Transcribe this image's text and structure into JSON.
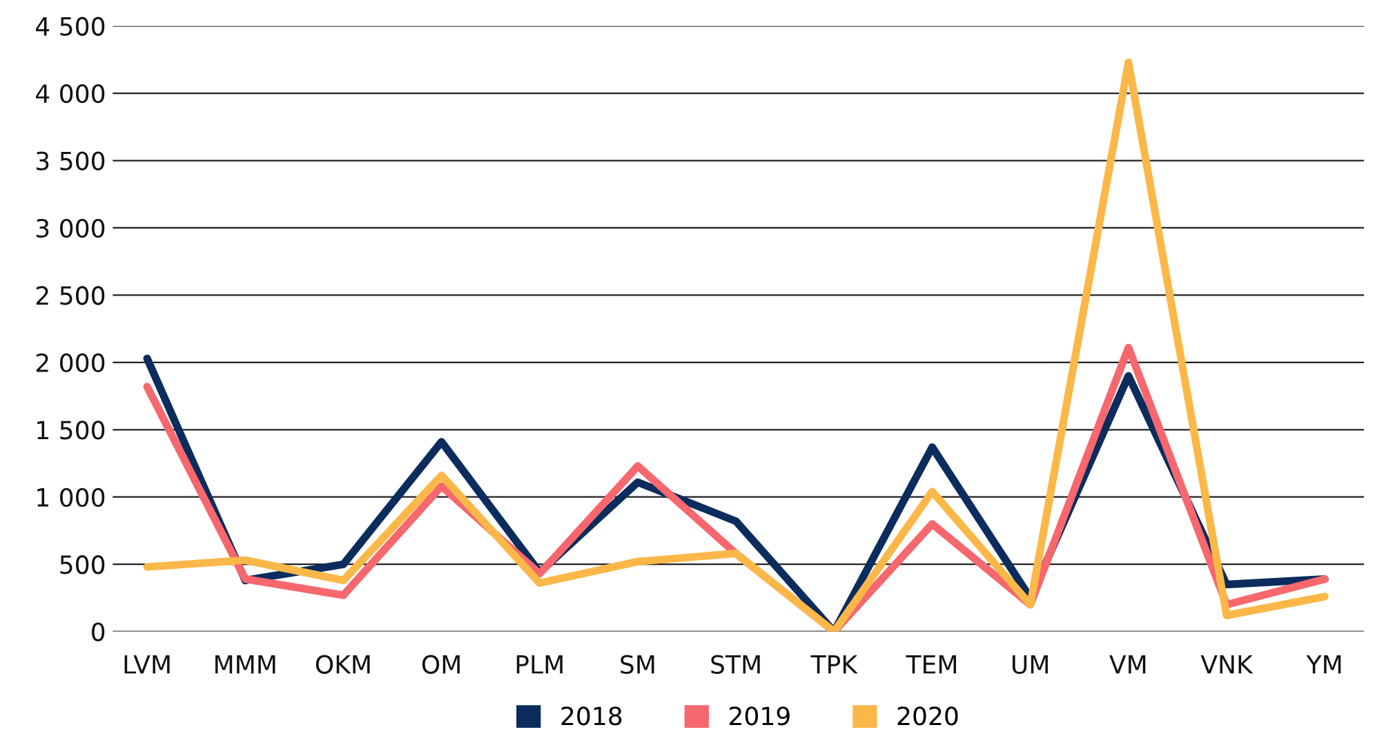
{
  "chart_data": {
    "type": "line",
    "categories": [
      "LVM",
      "MMM",
      "OKM",
      "OM",
      "PLM",
      "SM",
      "STM",
      "TPK",
      "TEM",
      "UM",
      "VM",
      "VNK",
      "YM"
    ],
    "series": [
      {
        "name": "2018",
        "color": "#0b2c5c",
        "values": [
          2030,
          380,
          500,
          1410,
          440,
          1110,
          820,
          0,
          1370,
          250,
          1900,
          350,
          390
        ]
      },
      {
        "name": "2019",
        "color": "#f7676e",
        "values": [
          1820,
          390,
          270,
          1080,
          430,
          1230,
          580,
          0,
          800,
          200,
          2110,
          200,
          390
        ]
      },
      {
        "name": "2020",
        "color": "#fbb848",
        "values": [
          480,
          530,
          380,
          1160,
          360,
          520,
          580,
          0,
          1040,
          200,
          4230,
          120,
          260
        ]
      }
    ],
    "ylim": [
      0,
      4500
    ],
    "yticks": [
      {
        "value": 0,
        "label": "0"
      },
      {
        "value": 500,
        "label": "500"
      },
      {
        "value": 1000,
        "label": "1 000"
      },
      {
        "value": 1500,
        "label": "1 500"
      },
      {
        "value": 2000,
        "label": "2 000"
      },
      {
        "value": 2500,
        "label": "2 500"
      },
      {
        "value": 3000,
        "label": "3 000"
      },
      {
        "value": 3500,
        "label": "3 500"
      },
      {
        "value": 4000,
        "label": "4 000"
      },
      {
        "value": 4500,
        "label": "4 500"
      }
    ],
    "grid": "y",
    "legend": "bottom",
    "marker": "none",
    "line_style": "solid"
  }
}
